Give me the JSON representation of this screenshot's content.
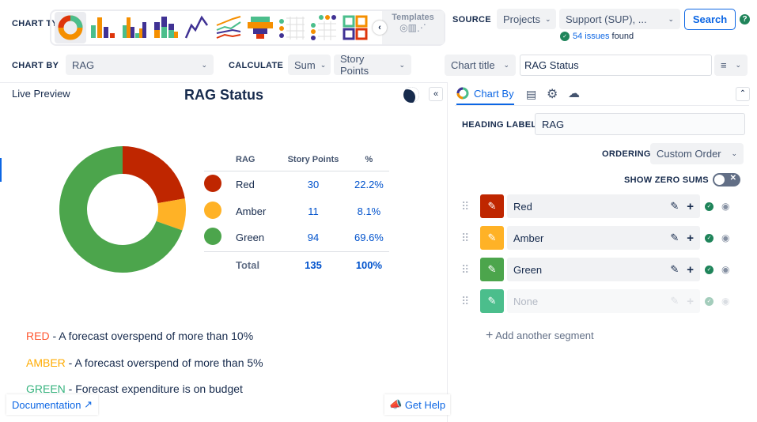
{
  "toolbar": {
    "chart_type_label": "CHART TYPE",
    "chart_types": [
      "donut",
      "bar",
      "grouped-bar",
      "stacked-bar",
      "line",
      "multi-line",
      "funnel",
      "dot-grid",
      "dot-grid-top",
      "tiles"
    ],
    "templates_label": "Templates",
    "source_label": "SOURCE",
    "source_type": "Projects",
    "source_value": "Support (SUP), ...",
    "search_label": "Search",
    "issues_count": "54 issues",
    "issues_suffix": "found",
    "chart_by_label": "CHART BY",
    "chart_by_value": "RAG",
    "calculate_label": "CALCULATE",
    "calc_fn": "Sum",
    "calc_field": "Story Points",
    "chart_title_select": "Chart title",
    "chart_title_value": "RAG Status"
  },
  "preview": {
    "tab": "Live Preview",
    "title": "RAG Status",
    "documentation": "Documentation",
    "help": "Get Help",
    "table": {
      "headers": [
        "RAG",
        "Story Points",
        "%"
      ],
      "rows": [
        {
          "label": "Red",
          "value": "30",
          "pct": "22.2%",
          "color": "#BF2600"
        },
        {
          "label": "Amber",
          "value": "11",
          "pct": "8.1%",
          "color": "#FFB226"
        },
        {
          "label": "Green",
          "value": "94",
          "pct": "69.6%",
          "color": "#4CA54C"
        }
      ],
      "total": {
        "label": "Total",
        "value": "135",
        "pct": "100%"
      }
    },
    "notes": [
      {
        "key": "RED",
        "text": " - A forecast overspend of more than 10%",
        "color": "#FF5630"
      },
      {
        "key": "AMBER",
        "text": " - A forecast overspend of more than 5%",
        "color": "#FFAB00"
      },
      {
        "key": "GREEN",
        "text": " - Forecast expenditure is on budget",
        "color": "#36B37E"
      }
    ]
  },
  "chart_data": {
    "type": "pie",
    "variant": "donut",
    "categories": [
      "Red",
      "Amber",
      "Green"
    ],
    "values": [
      30,
      11,
      94
    ],
    "colors": [
      "#BF2600",
      "#FFB226",
      "#4CA54C"
    ],
    "title": "RAG Status"
  },
  "panel": {
    "tab": "Chart By",
    "heading_label": "HEADING LABEL",
    "heading_value": "RAG",
    "ordering_label": "ORDERING",
    "ordering_value": "Custom Order",
    "zero_sums_label": "SHOW ZERO SUMS",
    "zero_sums": false,
    "segments": [
      {
        "label": "Red",
        "color": "#BF2600"
      },
      {
        "label": "Amber",
        "color": "#FFB226"
      },
      {
        "label": "Green",
        "color": "#4CA54C"
      },
      {
        "label": "None",
        "color": "#4BBE8C"
      }
    ],
    "add_segment": "Add another segment"
  }
}
